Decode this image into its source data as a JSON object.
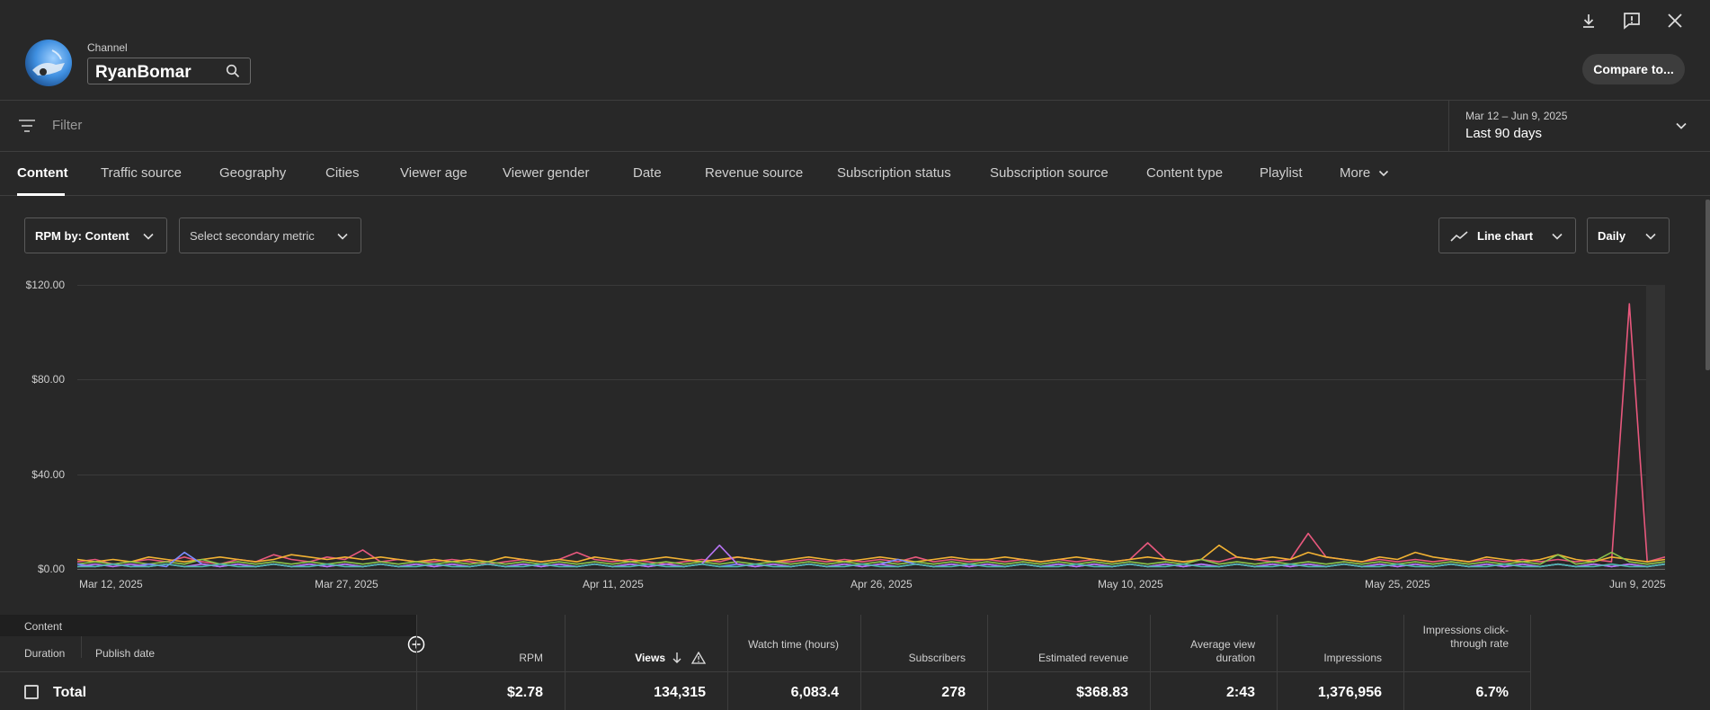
{
  "header": {
    "channel_caption": "Channel",
    "channel_name": "RyanBomar",
    "compare_label": "Compare to..."
  },
  "filter": {
    "placeholder": "Filter",
    "date_range": "Mar 12 – Jun 9, 2025",
    "date_label": "Last 90 days"
  },
  "tabs": [
    {
      "label": "Content",
      "active": true
    },
    {
      "label": "Traffic source"
    },
    {
      "label": "Geography"
    },
    {
      "label": "Cities"
    },
    {
      "label": "Viewer age"
    },
    {
      "label": "Viewer gender"
    },
    {
      "label": "Date"
    },
    {
      "label": "Revenue source"
    },
    {
      "label": "Subscription status"
    },
    {
      "label": "Subscription source"
    },
    {
      "label": "Content type"
    },
    {
      "label": "Playlist"
    },
    {
      "label": "More"
    }
  ],
  "controls": {
    "primary_metric": "RPM by: Content",
    "secondary_metric": "Select secondary metric",
    "chart_type": "Line chart",
    "granularity": "Daily"
  },
  "chart_data": {
    "type": "line",
    "y_ticks": [
      "$120.00",
      "$80.00",
      "$40.00",
      "$0.00"
    ],
    "ylim": [
      0,
      120
    ],
    "x_ticks": [
      "Mar 12, 2025",
      "Mar 27, 2025",
      "Apr 11, 2025",
      "Apr 26, 2025",
      "May 10, 2025",
      "May 25, 2025",
      "Jun 9, 2025"
    ],
    "num_days": 90,
    "series": [
      {
        "color": "#e8587d",
        "values": [
          3,
          4,
          2,
          3,
          4,
          3,
          5,
          3,
          2,
          4,
          3,
          6,
          4,
          3,
          5,
          4,
          8,
          3,
          4,
          3,
          3,
          4,
          3,
          2,
          3,
          4,
          3,
          4,
          7,
          4,
          3,
          4,
          3,
          2,
          3,
          4,
          3,
          5,
          4,
          3,
          3,
          4,
          3,
          4,
          3,
          4,
          3,
          5,
          3,
          4,
          3,
          4,
          3,
          4,
          3,
          4,
          3,
          4,
          3,
          4,
          11,
          4,
          3,
          4,
          3,
          5,
          4,
          3,
          4,
          15,
          5,
          4,
          3,
          4,
          3,
          4,
          3,
          4,
          3,
          4,
          3,
          4,
          3,
          4,
          3,
          4,
          3,
          112,
          3,
          5
        ]
      },
      {
        "color": "#f2b233",
        "values": [
          4,
          3,
          4,
          3,
          5,
          4,
          3,
          4,
          5,
          4,
          3,
          4,
          6,
          5,
          4,
          5,
          4,
          5,
          4,
          3,
          4,
          3,
          4,
          3,
          5,
          4,
          3,
          4,
          3,
          5,
          4,
          3,
          4,
          5,
          4,
          3,
          4,
          5,
          4,
          3,
          4,
          5,
          4,
          3,
          4,
          5,
          4,
          3,
          4,
          5,
          4,
          4,
          5,
          4,
          3,
          4,
          5,
          4,
          3,
          4,
          5,
          4,
          3,
          4,
          10,
          5,
          4,
          5,
          4,
          7,
          5,
          4,
          3,
          5,
          4,
          7,
          5,
          4,
          3,
          5,
          4,
          3,
          4,
          6,
          4,
          3,
          5,
          4,
          3,
          4
        ]
      },
      {
        "color": "#8bc34a",
        "values": [
          2,
          3,
          2,
          3,
          2,
          3,
          2,
          4,
          2,
          3,
          2,
          3,
          2,
          3,
          2,
          3,
          2,
          3,
          2,
          3,
          2,
          3,
          2,
          3,
          2,
          3,
          2,
          3,
          2,
          3,
          2,
          3,
          2,
          3,
          2,
          3,
          2,
          3,
          2,
          3,
          2,
          3,
          2,
          3,
          2,
          3,
          2,
          3,
          2,
          3,
          2,
          3,
          2,
          3,
          2,
          3,
          2,
          3,
          2,
          3,
          2,
          3,
          2,
          4,
          2,
          3,
          2,
          3,
          2,
          3,
          2,
          3,
          2,
          3,
          2,
          3,
          2,
          3,
          2,
          3,
          2,
          3,
          2,
          6,
          2,
          3,
          7,
          3,
          2,
          3
        ]
      },
      {
        "color": "#7a8cff",
        "values": [
          2,
          1,
          2,
          1,
          2,
          1,
          7,
          2,
          1,
          2,
          1,
          2,
          1,
          2,
          1,
          2,
          1,
          2,
          1,
          2,
          1,
          2,
          1,
          2,
          1,
          2,
          1,
          2,
          1,
          2,
          1,
          2,
          1,
          2,
          1,
          2,
          1,
          2,
          1,
          2,
          1,
          2,
          1,
          2,
          1,
          2,
          4,
          2,
          1,
          2,
          1,
          2,
          1,
          2,
          1,
          2,
          1,
          2,
          1,
          2,
          1,
          2,
          1,
          2,
          1,
          2,
          1,
          2,
          1,
          2,
          1,
          2,
          1,
          2,
          1,
          2,
          1,
          2,
          1,
          2,
          1,
          2,
          1,
          2,
          1,
          2,
          1,
          2,
          1,
          2
        ]
      },
      {
        "color": "#b774f4",
        "values": [
          1,
          2,
          1,
          2,
          1,
          2,
          1,
          2,
          1,
          2,
          1,
          2,
          1,
          2,
          1,
          2,
          1,
          2,
          1,
          2,
          1,
          2,
          1,
          2,
          1,
          2,
          1,
          2,
          1,
          2,
          1,
          2,
          1,
          2,
          1,
          2,
          10,
          2,
          1,
          2,
          1,
          2,
          1,
          2,
          1,
          2,
          1,
          2,
          1,
          2,
          1,
          2,
          1,
          2,
          1,
          2,
          1,
          2,
          1,
          2,
          1,
          2,
          1,
          2,
          1,
          2,
          1,
          2,
          1,
          2,
          1,
          2,
          1,
          2,
          1,
          2,
          1,
          2,
          1,
          2,
          1,
          2,
          1,
          2,
          1,
          2,
          1,
          2,
          1,
          2
        ]
      },
      {
        "color": "#4db6ac",
        "values": [
          1,
          1,
          2,
          1,
          1,
          2,
          1,
          1,
          2,
          1,
          1,
          2,
          1,
          1,
          2,
          1,
          1,
          2,
          1,
          1,
          2,
          1,
          1,
          2,
          1,
          1,
          2,
          1,
          1,
          2,
          1,
          1,
          2,
          1,
          1,
          2,
          1,
          1,
          2,
          1,
          1,
          2,
          1,
          1,
          2,
          1,
          1,
          2,
          1,
          1,
          2,
          1,
          1,
          2,
          1,
          1,
          2,
          1,
          1,
          2,
          1,
          1,
          2,
          1,
          1,
          2,
          1,
          1,
          2,
          1,
          1,
          2,
          1,
          1,
          2,
          1,
          1,
          2,
          1,
          1,
          2,
          1,
          1,
          2,
          1,
          1,
          2,
          1,
          1,
          2
        ]
      }
    ]
  },
  "table": {
    "col_content": "Content",
    "col_duration": "Duration",
    "col_publish": "Publish date",
    "headers": [
      {
        "label": "RPM"
      },
      {
        "label": "Views",
        "sorted": true
      },
      {
        "label": "Watch time (hours)"
      },
      {
        "label": "Subscribers"
      },
      {
        "label": "Estimated revenue"
      },
      {
        "label": "Average view duration"
      },
      {
        "label": "Impressions"
      },
      {
        "label": "Impressions click-through rate"
      }
    ],
    "total_label": "Total",
    "totals": [
      "$2.78",
      "134,315",
      "6,083.4",
      "278",
      "$368.83",
      "2:43",
      "1,376,956",
      "6.7%"
    ]
  }
}
